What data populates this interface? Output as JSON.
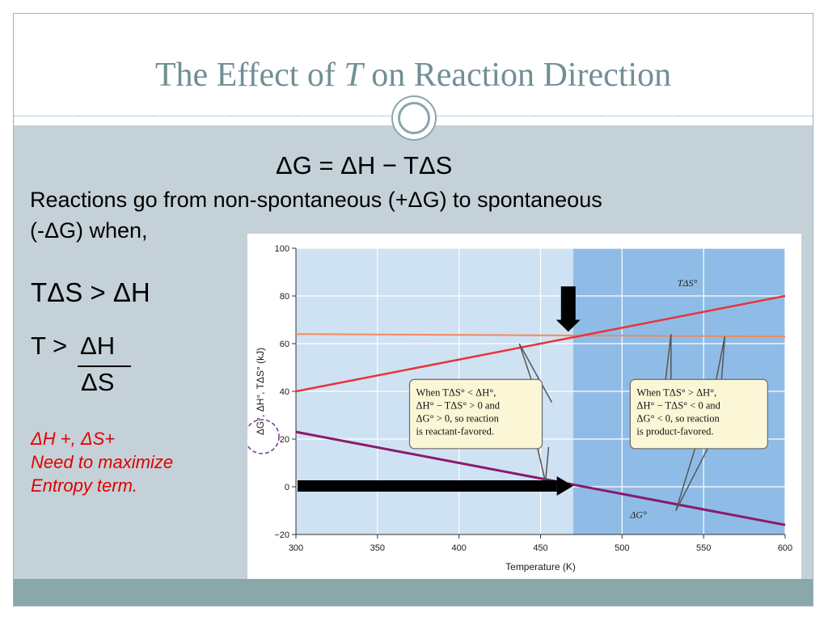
{
  "slide": {
    "title_pre": "The Effect of ",
    "title_var": "T",
    "title_post": " on Reaction Direction"
  },
  "body": {
    "equation": "ΔG = ΔH − TΔS",
    "line1": "Reactions  go from non-spontaneous (+ΔG) to spontaneous",
    "line2": "(-ΔG) when,",
    "condition1": "TΔS > ΔH",
    "condition2_prefix": "T >",
    "fraction_numerator": "ΔH",
    "fraction_denominator": "ΔS",
    "note_line1": "ΔH +, ΔS+",
    "note_line2": "Need to maximize",
    "note_line3": "Entropy term."
  },
  "colors": {
    "accent": "#6f8f95",
    "content_bg": "#c5d1d8",
    "footer": "#88a8aa",
    "note": "#e00000",
    "dH_line": "#f08a5d",
    "TdS_line": "#e8343a",
    "dG_line": "#8a1a6b",
    "plot_light": "#cfe2f3",
    "plot_dark": "#8fbce6",
    "callout_bg": "#fbf6d6"
  },
  "chart_data": {
    "type": "line",
    "xlabel": "Temperature (K)",
    "ylabel": "ΔG°, ΔH°, TΔS° (kJ)",
    "xlim": [
      300,
      600
    ],
    "ylim": [
      -20,
      100
    ],
    "x_ticks": [
      300,
      350,
      400,
      450,
      500,
      550,
      600
    ],
    "y_ticks": [
      -20,
      0,
      20,
      40,
      60,
      80,
      100
    ],
    "y_tick_labels": [
      "−20",
      "0",
      "20",
      "40",
      "60",
      "80",
      "100"
    ],
    "grid": true,
    "shaded_region_from_x": 470,
    "series": [
      {
        "name": "ΔH°",
        "x": [
          300,
          600
        ],
        "y": [
          64,
          63
        ]
      },
      {
        "name": "TΔS°",
        "x": [
          300,
          600
        ],
        "y": [
          40,
          80
        ]
      },
      {
        "name": "ΔG°",
        "x": [
          300,
          600
        ],
        "y": [
          23,
          -16
        ]
      }
    ],
    "annotations": {
      "left_box": [
        "When TΔS° < ΔH°,",
        "ΔH° − TΔS° > 0 and",
        "ΔG° > 0, so reaction",
        "is reactant-favored."
      ],
      "right_box": [
        "When TΔS° > ΔH°,",
        "ΔH° − TΔS° < 0 and",
        "ΔG° < 0, so reaction",
        "is product-favored."
      ]
    }
  }
}
